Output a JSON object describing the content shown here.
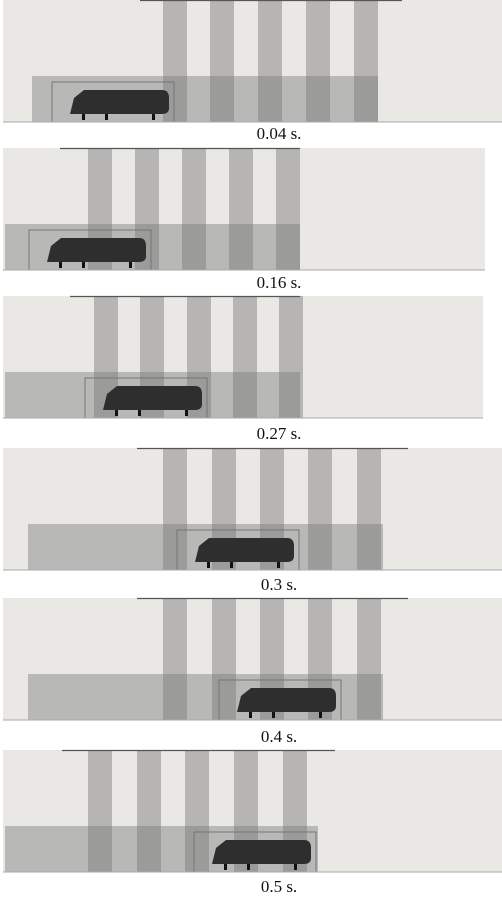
{
  "panels": [
    {
      "caption": "0.04 s."
    },
    {
      "caption": "0.16 s."
    },
    {
      "caption": "0.27 s."
    },
    {
      "caption": "0.3 s."
    },
    {
      "caption": "0.4 s."
    },
    {
      "caption": "0.5 s."
    }
  ]
}
